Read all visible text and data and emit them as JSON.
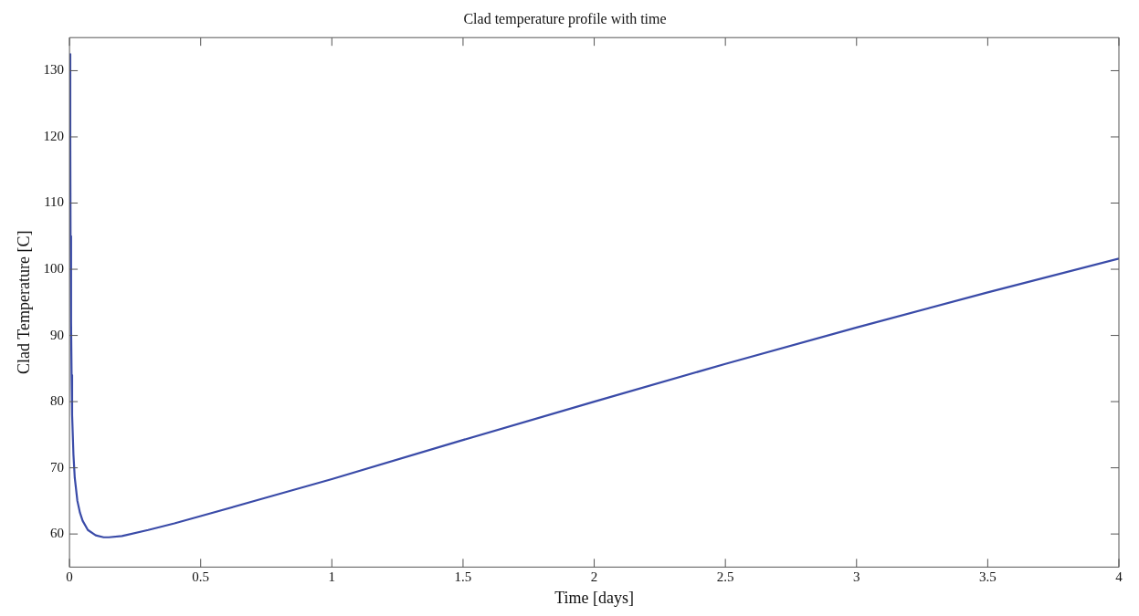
{
  "chart_data": {
    "type": "line",
    "title": "Clad temperature profile with time",
    "xlabel": "Time [days]",
    "ylabel": "Clad Temperature [C]",
    "x": [
      0.002,
      0.003,
      0.004,
      0.006,
      0.008,
      0.01,
      0.015,
      0.02,
      0.03,
      0.04,
      0.05,
      0.07,
      0.1,
      0.13,
      0.15,
      0.2,
      0.3,
      0.4,
      0.5,
      0.75,
      1,
      1.5,
      2,
      2.5,
      3,
      3.5,
      4
    ],
    "series": [
      {
        "color": "#3a4ba8",
        "values": [
          132.5,
          120,
          105,
          92,
          84,
          78,
          72,
          68.5,
          65,
          63.2,
          62,
          60.6,
          59.8,
          59.5,
          59.5,
          59.7,
          60.6,
          61.6,
          62.7,
          65.5,
          68.3,
          74.2,
          80,
          85.7,
          91.2,
          96.5,
          101.6
        ]
      }
    ],
    "xlim": [
      0,
      4
    ],
    "xticks": [
      0,
      0.5,
      1,
      1.5,
      2,
      2.5,
      3,
      3.5,
      4
    ],
    "ylim": [
      55,
      135
    ],
    "yticks": [
      60,
      70,
      80,
      90,
      100,
      110,
      120,
      130
    ],
    "grid": false,
    "legend": false,
    "marker": "none",
    "line_style": "solid"
  }
}
